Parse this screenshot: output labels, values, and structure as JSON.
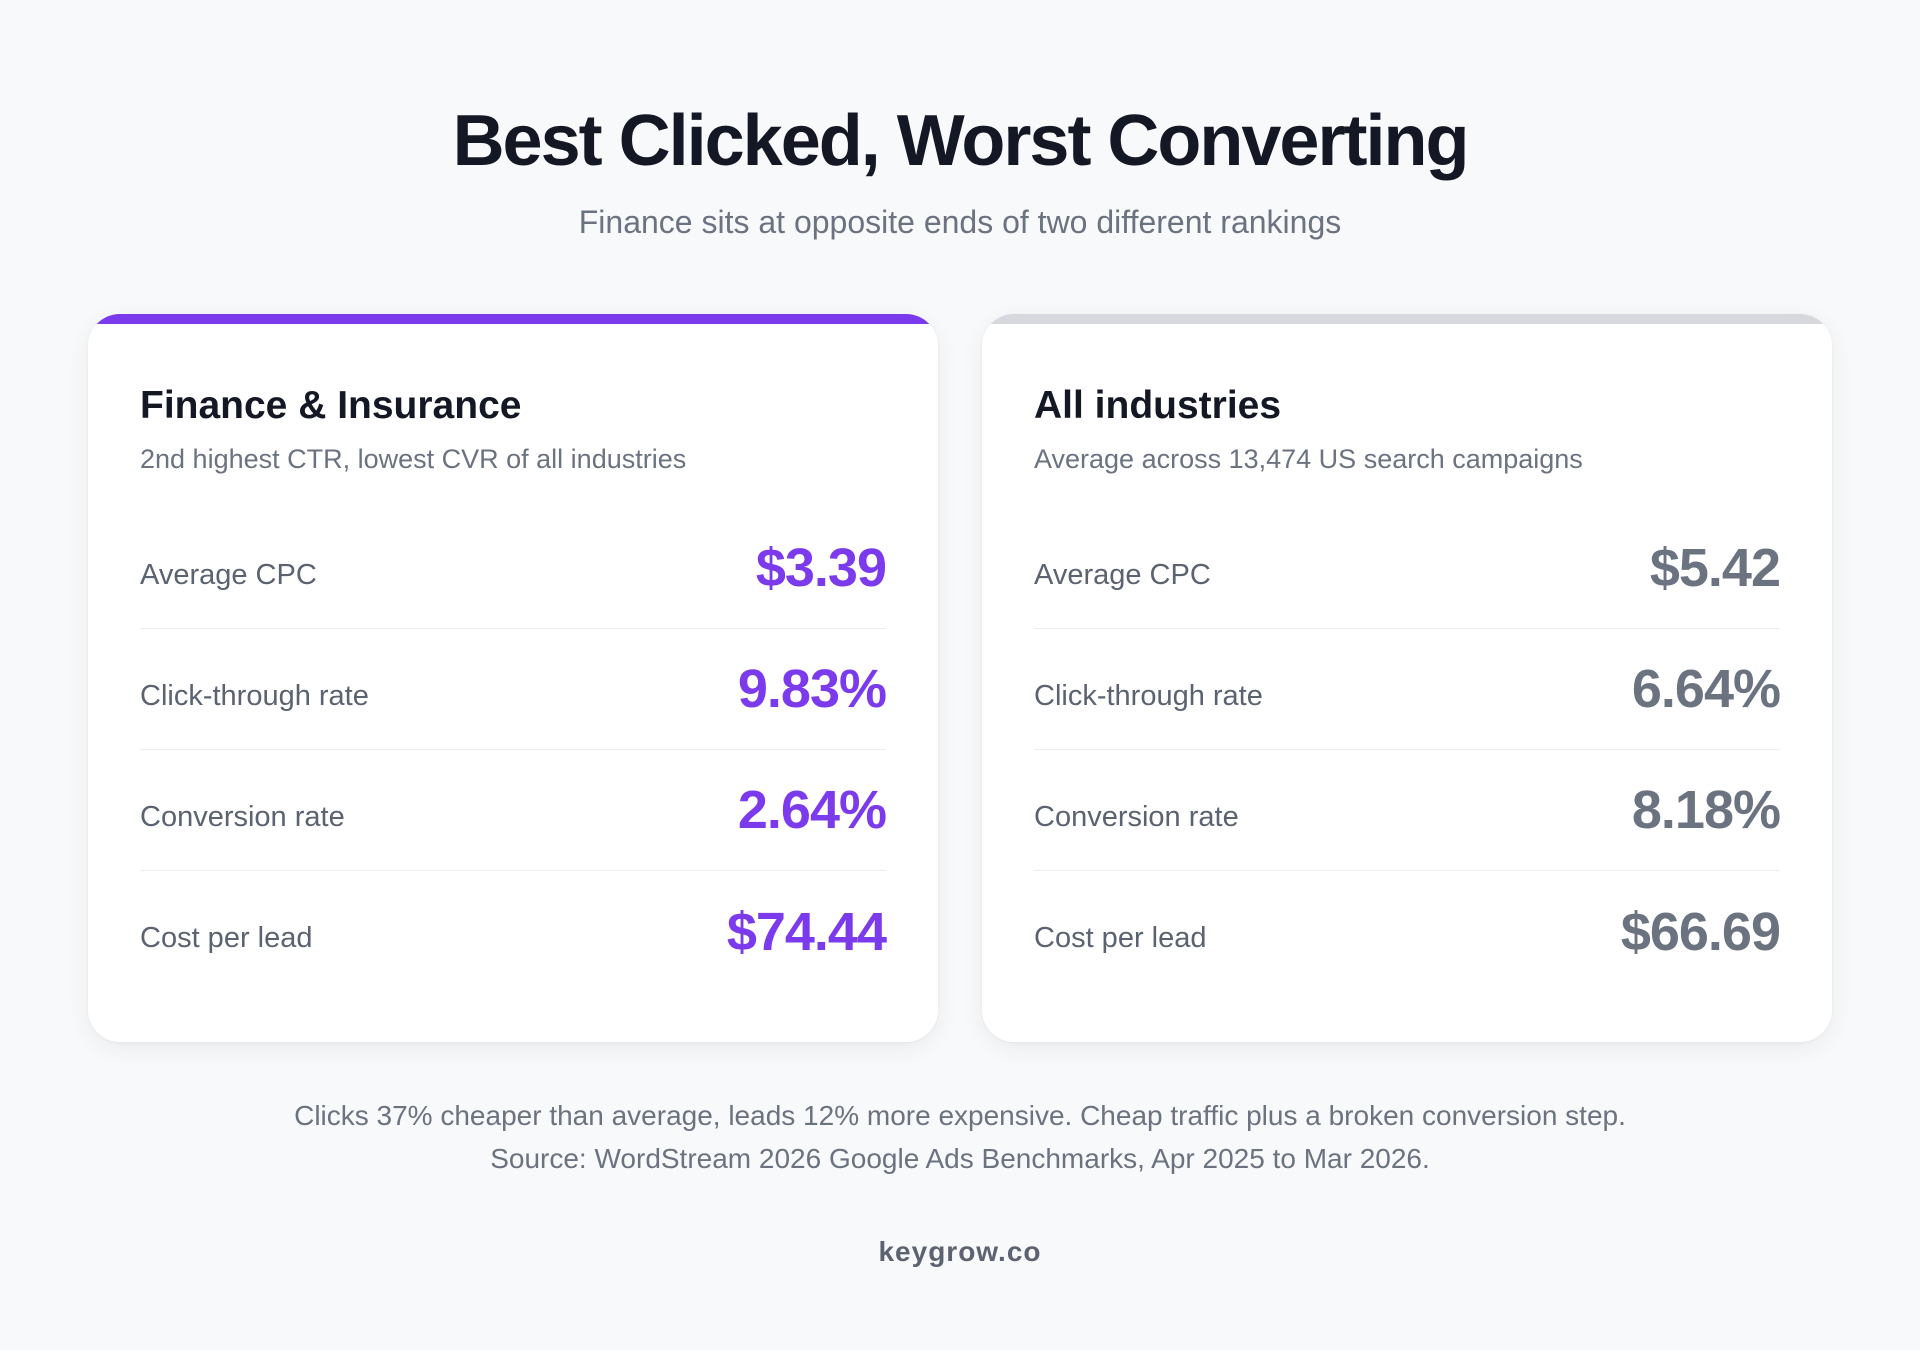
{
  "header": {
    "title": "Best Clicked, Worst Converting",
    "subtitle": "Finance sits at opposite ends of two different rankings"
  },
  "cards": [
    {
      "title": "Finance & Insurance",
      "description": "2nd highest CTR, lowest CVR of all industries",
      "accent_color": "#7c3aed",
      "metrics": [
        {
          "label": "Average CPC",
          "value": "$3.39"
        },
        {
          "label": "Click-through rate",
          "value": "9.83%"
        },
        {
          "label": "Conversion rate",
          "value": "2.64%"
        },
        {
          "label": "Cost per lead",
          "value": "$74.44"
        }
      ]
    },
    {
      "title": "All industries",
      "description": "Average across 13,474 US search campaigns",
      "accent_color": "#d6d8dd",
      "metrics": [
        {
          "label": "Average CPC",
          "value": "$5.42"
        },
        {
          "label": "Click-through rate",
          "value": "6.64%"
        },
        {
          "label": "Conversion rate",
          "value": "8.18%"
        },
        {
          "label": "Cost per lead",
          "value": "$66.69"
        }
      ]
    }
  ],
  "footer": {
    "note": "Clicks 37% cheaper than average, leads 12% more expensive. Cheap traffic plus a broken conversion step.",
    "source": "Source: WordStream 2026 Google Ads Benchmarks, Apr 2025 to Mar 2026.",
    "brand": "keygrow.co"
  },
  "colors": {
    "background": "#f8f9fa",
    "finance_value": "#7c3aed",
    "average_value": "#6b7280",
    "title": "#141824"
  }
}
